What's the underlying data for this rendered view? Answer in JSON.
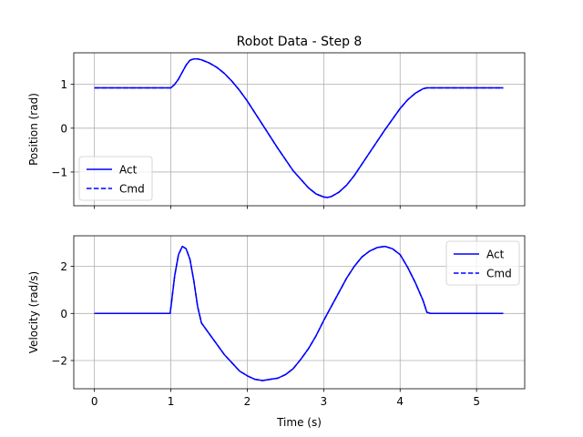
{
  "chart_data": [
    {
      "type": "line",
      "title": "Robot Data - Step 8",
      "xlabel": "",
      "ylabel": "Position (rad)",
      "xlim": [
        -0.27,
        5.63
      ],
      "ylim": [
        -1.77,
        1.72
      ],
      "xticks": [
        0,
        1,
        2,
        3,
        4,
        5
      ],
      "yticks": [
        -1,
        0,
        1
      ],
      "ytick_labels": [
        "−1",
        "0",
        "1"
      ],
      "grid": true,
      "legend": "lower-left",
      "series": [
        {
          "name": "Act",
          "color": "#0000ff",
          "style": "solid",
          "x": [
            0,
            1.0,
            1.05,
            1.1,
            1.15,
            1.2,
            1.25,
            1.3,
            1.35,
            1.4,
            1.5,
            1.6,
            1.7,
            1.8,
            1.9,
            2.0,
            2.2,
            2.4,
            2.6,
            2.8,
            2.9,
            3.0,
            3.05,
            3.1,
            3.2,
            3.3,
            3.4,
            3.6,
            3.8,
            4.0,
            4.1,
            4.2,
            4.3,
            4.35,
            4.4,
            5.35
          ],
          "y": [
            0.92,
            0.92,
            1.0,
            1.12,
            1.28,
            1.44,
            1.55,
            1.58,
            1.58,
            1.56,
            1.49,
            1.39,
            1.25,
            1.07,
            0.86,
            0.62,
            0.08,
            -0.46,
            -0.97,
            -1.36,
            -1.5,
            -1.57,
            -1.58,
            -1.56,
            -1.46,
            -1.3,
            -1.08,
            -0.56,
            -0.04,
            0.45,
            0.65,
            0.8,
            0.9,
            0.92,
            0.92,
            0.92
          ]
        },
        {
          "name": "Cmd",
          "color": "#0000ff",
          "style": "dashed",
          "x": [
            0,
            1.0,
            1.05,
            1.1,
            1.15,
            1.2,
            1.25,
            1.3,
            1.35,
            1.4,
            1.5,
            1.6,
            1.7,
            1.8,
            1.9,
            2.0,
            2.2,
            2.4,
            2.6,
            2.8,
            2.9,
            3.0,
            3.05,
            3.1,
            3.2,
            3.3,
            3.4,
            3.6,
            3.8,
            4.0,
            4.1,
            4.2,
            4.3,
            4.35,
            4.4,
            5.35
          ],
          "y": [
            0.92,
            0.92,
            1.0,
            1.12,
            1.28,
            1.44,
            1.55,
            1.58,
            1.58,
            1.56,
            1.49,
            1.39,
            1.25,
            1.07,
            0.86,
            0.62,
            0.08,
            -0.46,
            -0.97,
            -1.36,
            -1.5,
            -1.57,
            -1.58,
            -1.56,
            -1.46,
            -1.3,
            -1.08,
            -0.56,
            -0.04,
            0.45,
            0.65,
            0.8,
            0.9,
            0.92,
            0.92,
            0.92
          ]
        }
      ]
    },
    {
      "type": "line",
      "title": "",
      "xlabel": "Time (s)",
      "ylabel": "Velocity (rad/s)",
      "xlim": [
        -0.27,
        5.63
      ],
      "ylim": [
        -3.2,
        3.3
      ],
      "xticks": [
        0,
        1,
        2,
        3,
        4,
        5
      ],
      "yticks": [
        -2,
        0,
        2
      ],
      "ytick_labels": [
        "−2",
        "0",
        "2"
      ],
      "grid": true,
      "legend": "upper-right",
      "series": [
        {
          "name": "Act",
          "color": "#0000ff",
          "style": "solid",
          "x": [
            0,
            0.5,
            0.99,
            1.01,
            1.05,
            1.1,
            1.15,
            1.2,
            1.25,
            1.3,
            1.35,
            1.4,
            1.5,
            1.6,
            1.7,
            1.8,
            1.9,
            2.0,
            2.1,
            2.2,
            2.3,
            2.4,
            2.5,
            2.6,
            2.7,
            2.8,
            2.9,
            3.0,
            3.05,
            3.1,
            3.2,
            3.3,
            3.4,
            3.5,
            3.6,
            3.7,
            3.8,
            3.9,
            4.0,
            4.1,
            4.2,
            4.3,
            4.35,
            4.4,
            5.35
          ],
          "y": [
            0.0,
            0.0,
            0.0,
            0.5,
            1.6,
            2.5,
            2.85,
            2.75,
            2.3,
            1.4,
            0.3,
            -0.4,
            -0.85,
            -1.3,
            -1.75,
            -2.1,
            -2.45,
            -2.65,
            -2.8,
            -2.85,
            -2.8,
            -2.75,
            -2.6,
            -2.35,
            -1.95,
            -1.5,
            -0.95,
            -0.3,
            0.0,
            0.3,
            0.9,
            1.5,
            2.0,
            2.4,
            2.65,
            2.8,
            2.85,
            2.75,
            2.5,
            1.95,
            1.3,
            0.55,
            0.05,
            0.0,
            0.0
          ]
        },
        {
          "name": "Cmd",
          "color": "#0000ff",
          "style": "dashed",
          "x": [
            0,
            0.5,
            0.99,
            1.01,
            1.05,
            1.1,
            1.15,
            1.2,
            1.25,
            1.3,
            1.35,
            1.4,
            1.5,
            1.6,
            1.7,
            1.8,
            1.9,
            2.0,
            2.1,
            2.2,
            2.3,
            2.4,
            2.5,
            2.6,
            2.7,
            2.8,
            2.9,
            3.0,
            3.05,
            3.1,
            3.2,
            3.3,
            3.4,
            3.5,
            3.6,
            3.7,
            3.8,
            3.9,
            4.0,
            4.1,
            4.2,
            4.3,
            4.35,
            4.4,
            5.35
          ],
          "y": [
            0.0,
            0.0,
            0.0,
            0.5,
            1.6,
            2.5,
            2.85,
            2.75,
            2.3,
            1.4,
            0.3,
            -0.4,
            -0.85,
            -1.3,
            -1.75,
            -2.1,
            -2.45,
            -2.65,
            -2.8,
            -2.85,
            -2.8,
            -2.75,
            -2.6,
            -2.35,
            -1.95,
            -1.5,
            -0.95,
            -0.3,
            0.0,
            0.3,
            0.9,
            1.5,
            2.0,
            2.4,
            2.65,
            2.8,
            2.85,
            2.75,
            2.5,
            1.95,
            1.3,
            0.55,
            0.05,
            0.0,
            0.0
          ]
        }
      ]
    }
  ]
}
